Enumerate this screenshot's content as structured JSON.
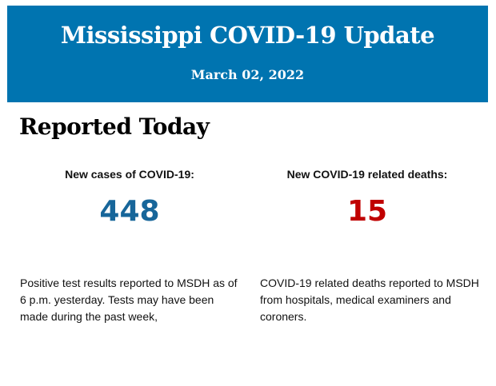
{
  "header": {
    "title": "Mississippi COVID-19 Update",
    "date": "March 02, 2022",
    "bg_color": "#0074B0"
  },
  "section_heading": "Reported Today",
  "cases": {
    "label": "New cases of COVID-19:",
    "value": "448",
    "color": "#17669A",
    "description": "Positive test results reported to MSDH as of 6 p.m. yesterday. Tests may have been made during the past week,"
  },
  "deaths": {
    "label": "New COVID-19 related deaths:",
    "value": "15",
    "color": "#C00000",
    "description": "COVID-19 related deaths reported to MSDH from hospitals, medical examiners and coroners."
  }
}
